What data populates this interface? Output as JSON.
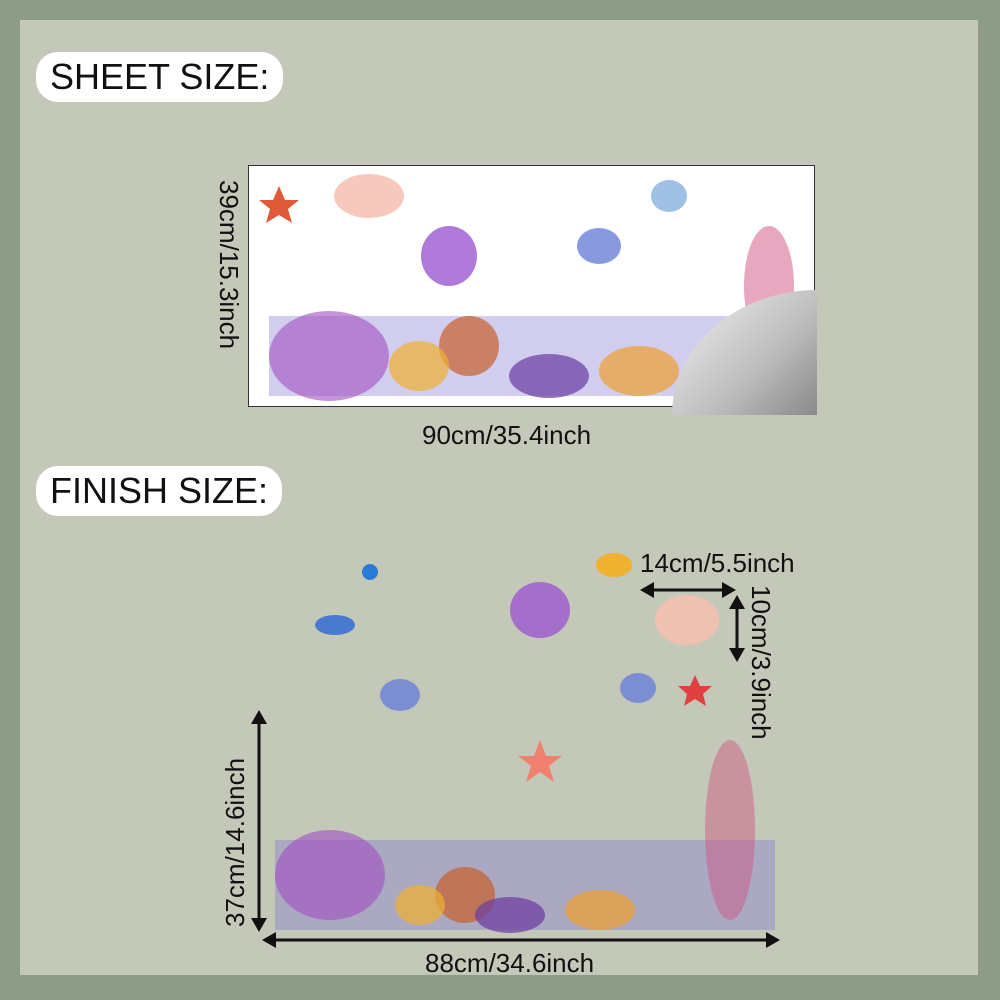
{
  "sheet_size": {
    "label": "SHEET SIZE:",
    "height_text": "39cm/15.3inch",
    "width_text": "90cm/35.4inch"
  },
  "finish_size": {
    "label": "FINISH SIZE:",
    "height_text": "37cm/14.6inch",
    "width_text": "88cm/34.6inch",
    "coral_width_text": "14cm/5.5inch",
    "coral_height_text": "10cm/3.9inch"
  },
  "colors": {
    "background": "#c4c8b8",
    "border": "#8d9c86"
  }
}
